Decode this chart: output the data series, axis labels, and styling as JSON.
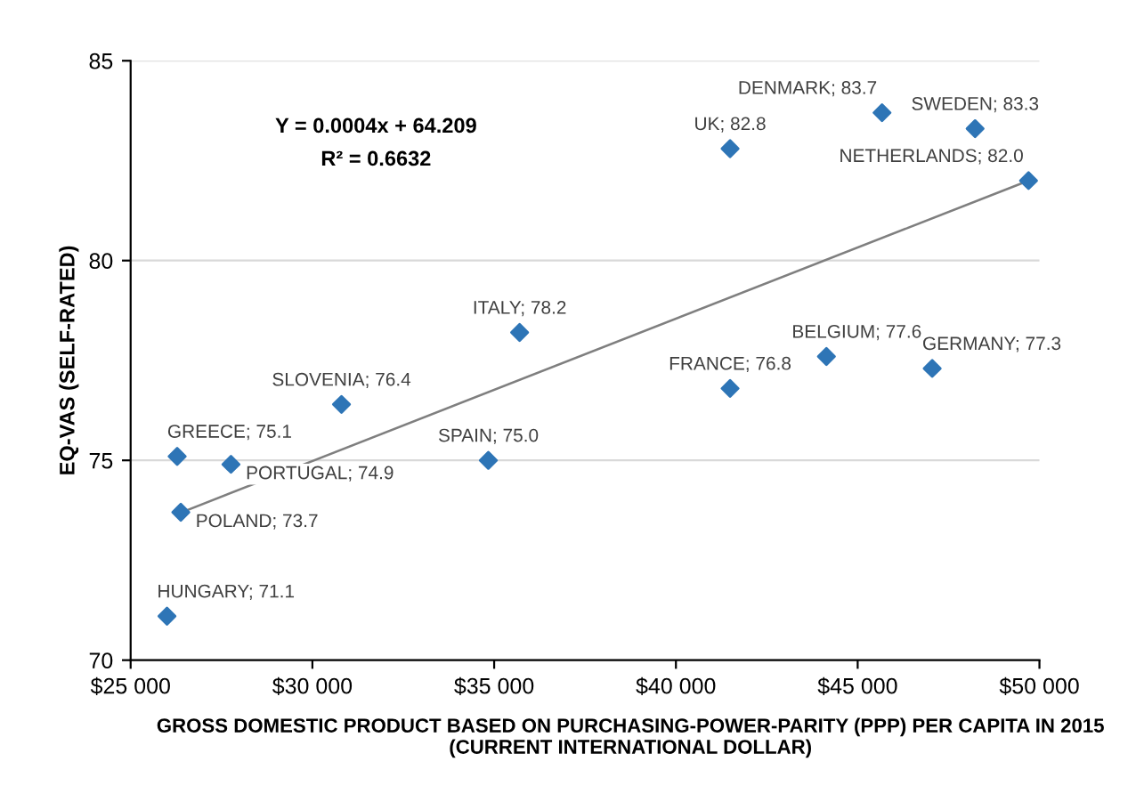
{
  "chart_data": {
    "type": "scatter",
    "xlabel": "GROSS DOMESTIC PRODUCT BASED ON PURCHASING-POWER-PARITY (PPP) PER CAPITA IN 2015\n(CURRENT INTERNATIONAL DOLLAR)",
    "ylabel": "EQ-VAS (SELF-RATED)",
    "xlim": [
      25000,
      50000
    ],
    "xticks": [
      {
        "value": 25000,
        "label": "$25 000"
      },
      {
        "value": 30000,
        "label": "$30 000"
      },
      {
        "value": 35000,
        "label": "$35 000"
      },
      {
        "value": 40000,
        "label": "$40 000"
      },
      {
        "value": 45000,
        "label": "$45 000"
      },
      {
        "value": 50000,
        "label": "$50 000"
      }
    ],
    "ylim": [
      70,
      85
    ],
    "yticks": [
      70,
      75,
      80,
      85
    ],
    "grid": "y",
    "annotations": [
      "Y = 0.0004x + 64.209",
      "R² = 0.6632"
    ],
    "series": [
      {
        "marker": "diamond",
        "color": "#2e75b6",
        "x": [
          26000,
          26380,
          26280,
          27760,
          30800,
          34840,
          35700,
          41490,
          41490,
          44140,
          45670,
          47050,
          48230,
          49700
        ],
        "values": [
          71.1,
          73.7,
          75.1,
          74.9,
          76.4,
          75.0,
          78.2,
          76.8,
          82.8,
          77.6,
          83.7,
          77.3,
          83.3,
          82.0
        ],
        "value_labels": [
          "HUNGARY; 71.1",
          "POLAND; 73.7",
          "GREECE; 75.1",
          "PORTUGAL; 74.9",
          "SLOVENIA; 76.4",
          "SPAIN; 75.0",
          "ITALY; 78.2",
          "FRANCE; 76.8",
          "UK; 82.8",
          "BELGIUM; 77.6",
          "DENMARK; 83.7",
          "GERMANY; 77.3",
          "SWEDEN; 83.3",
          "NETHERLANDS; 82.0"
        ]
      },
      {
        "type": "line",
        "color": "#7f7f7f",
        "x": [
          26400,
          49700
        ],
        "values": [
          73.7,
          82.0
        ]
      }
    ]
  }
}
